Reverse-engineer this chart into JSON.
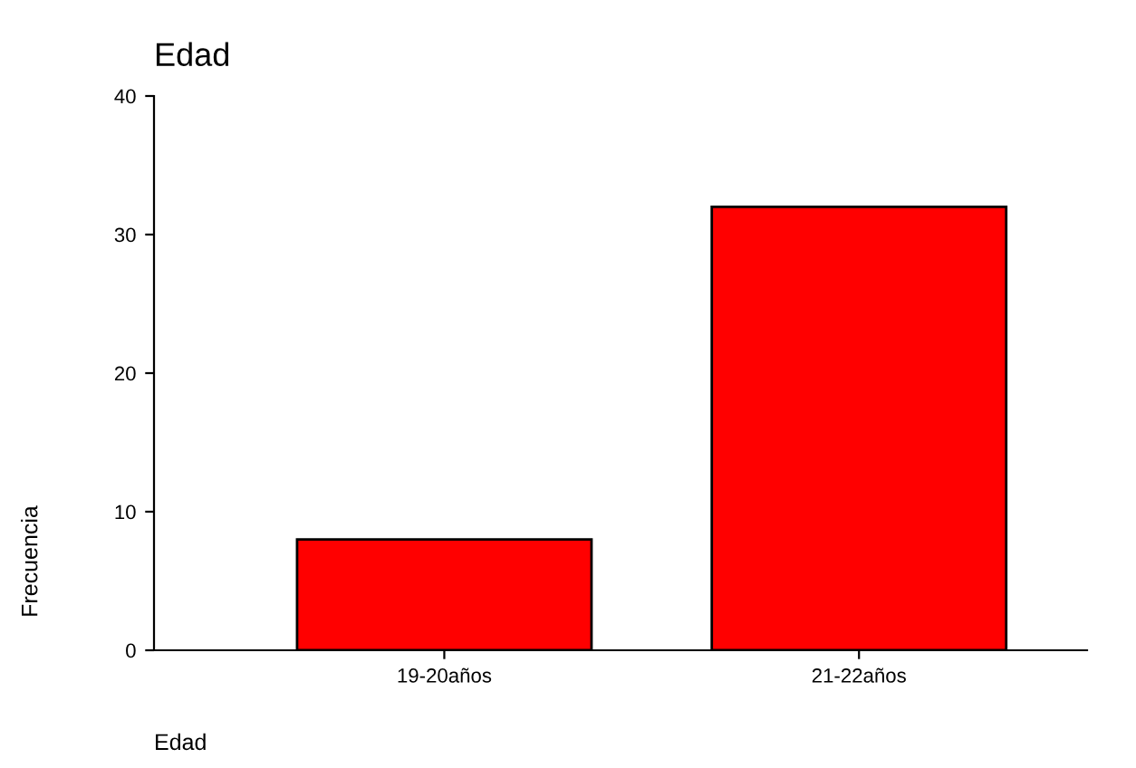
{
  "chart_data": {
    "type": "bar",
    "title": "Edad",
    "xlabel": "Edad",
    "ylabel": "Frecuencia",
    "categories": [
      "19-20años",
      "21-22años"
    ],
    "values": [
      8,
      32
    ],
    "color": "#ff0000",
    "ylim": [
      0,
      40
    ],
    "yticks": [
      0,
      10,
      20,
      30,
      40
    ],
    "grid": false,
    "legend": false
  }
}
